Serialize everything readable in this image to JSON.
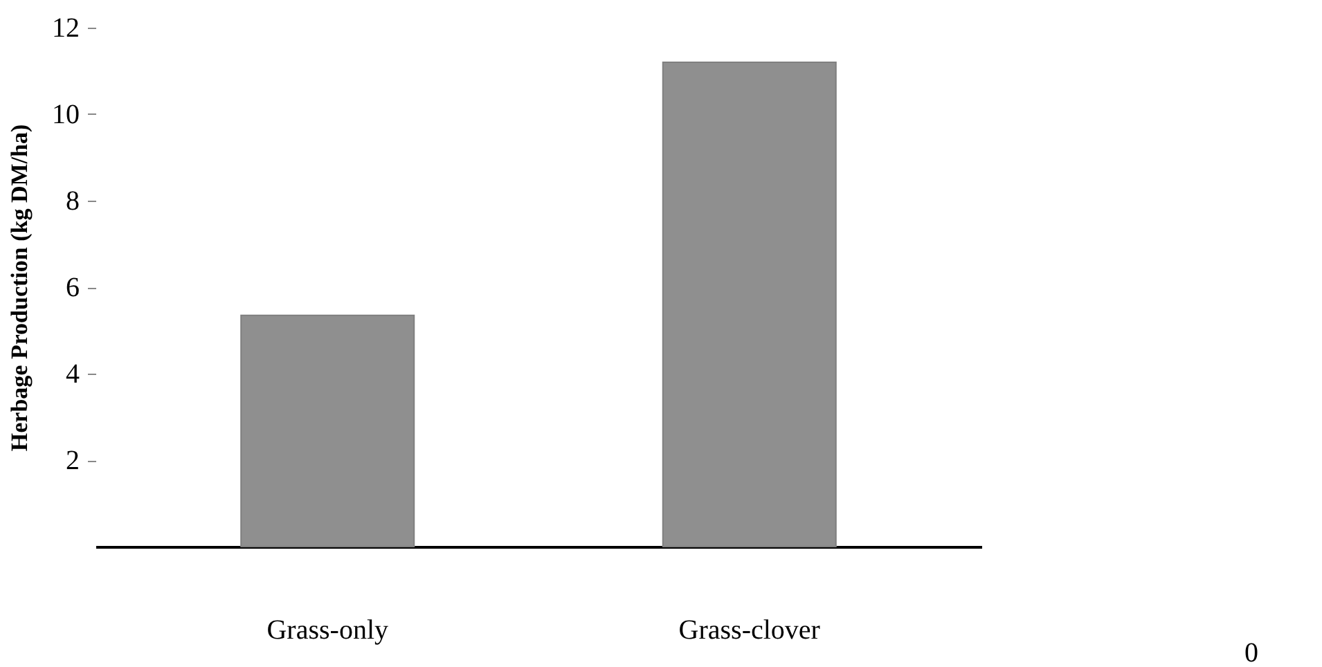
{
  "chart_data": {
    "type": "bar",
    "ylabel": "Herbage Production (kg DM/ha)",
    "categories": [
      "Grass-only",
      "Grass-clover"
    ],
    "values": [
      5.35,
      11.2
    ],
    "color": "#8f8f8f",
    "ylim": [
      0,
      12
    ],
    "yticks": [
      2,
      4,
      6,
      8,
      10,
      12
    ],
    "grid": false,
    "annotations": [
      "0"
    ]
  }
}
